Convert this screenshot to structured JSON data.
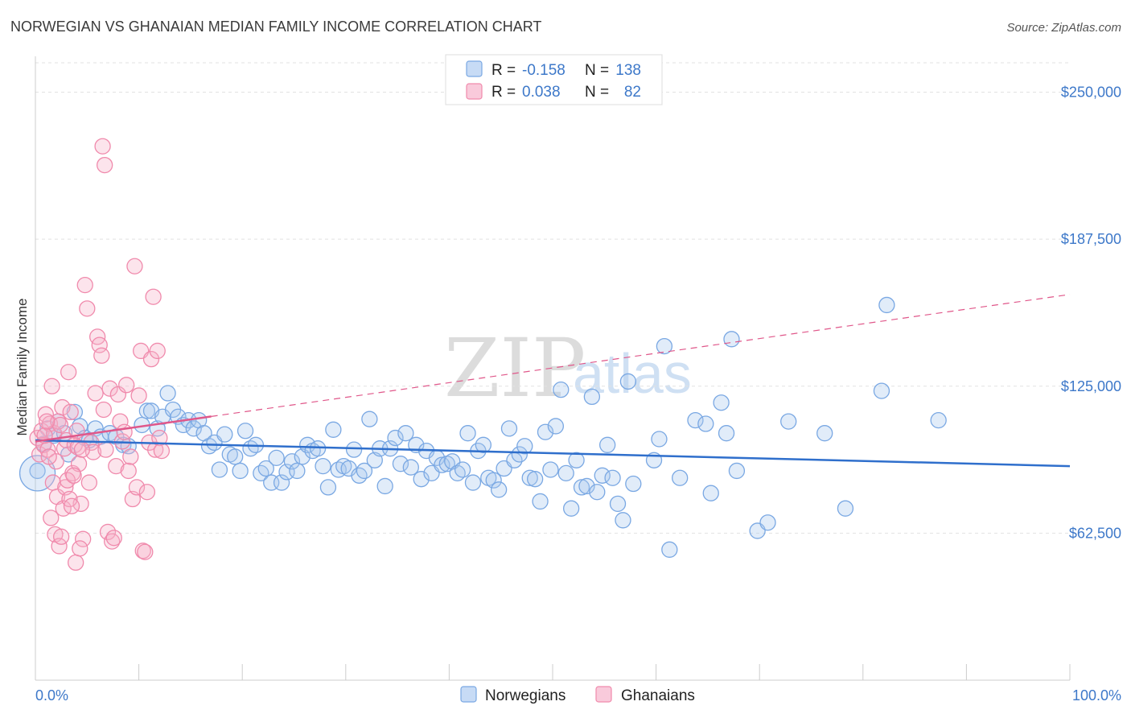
{
  "header": {
    "title": "NORWEGIAN VS GHANAIAN MEDIAN FAMILY INCOME CORRELATION CHART",
    "source": "Source: ZipAtlas.com"
  },
  "watermark": {
    "zip": "ZIP",
    "atlas": "atlas"
  },
  "legend_top": [
    {
      "r_label": "R =",
      "r_value": "-0.158",
      "n_label": "N =",
      "n_value": "138",
      "color": "#a9c8ef"
    },
    {
      "r_label": "R =",
      "r_value": "0.038",
      "n_label": "N =",
      "n_value": "82",
      "color": "#f5b3c8"
    }
  ],
  "chart_data": {
    "type": "scatter",
    "title": "NORWEGIAN VS GHANAIAN MEDIAN FAMILY INCOME CORRELATION CHART",
    "xlabel": "",
    "ylabel": "Median Family Income",
    "xlim": [
      0,
      100
    ],
    "ylim": [
      0,
      262500
    ],
    "x_tick_labels": [
      "0.0%",
      "100.0%"
    ],
    "y_ticks": [
      62500,
      125000,
      187500,
      250000
    ],
    "y_tick_labels": [
      "$62,500",
      "$125,000",
      "$187,500",
      "$250,000"
    ],
    "grid": true,
    "legend": [
      "Norwegians",
      "Ghanaians"
    ],
    "series": [
      {
        "name": "Norwegians",
        "color": "#7aa8e3",
        "line_color": "#2f6fcc",
        "trend": {
          "x": [
            0,
            100
          ],
          "y": [
            102000,
            91000
          ]
        },
        "points": [
          [
            0.2,
            89000
          ],
          [
            0.8,
            100500
          ],
          [
            1.2,
            107000
          ],
          [
            1.8,
            104000
          ],
          [
            2.2,
            110000
          ],
          [
            2.8,
            105000
          ],
          [
            3.2,
            96000
          ],
          [
            3.8,
            114000
          ],
          [
            4.3,
            108000
          ],
          [
            4.8,
            103000
          ],
          [
            5.2,
            102000
          ],
          [
            5.8,
            107000
          ],
          [
            6.3,
            103500
          ],
          [
            7.2,
            105000
          ],
          [
            7.8,
            103500
          ],
          [
            8.5,
            100000
          ],
          [
            9.0,
            99500
          ],
          [
            10.3,
            108500
          ],
          [
            10.8,
            114500
          ],
          [
            11.2,
            114500
          ],
          [
            11.8,
            107000
          ],
          [
            12.3,
            112000
          ],
          [
            12.8,
            122000
          ],
          [
            13.3,
            115000
          ],
          [
            13.8,
            112000
          ],
          [
            14.3,
            108500
          ],
          [
            14.8,
            110500
          ],
          [
            15.3,
            107000
          ],
          [
            15.8,
            110500
          ],
          [
            16.3,
            105000
          ],
          [
            16.8,
            99500
          ],
          [
            17.3,
            101000
          ],
          [
            17.8,
            89500
          ],
          [
            18.3,
            104500
          ],
          [
            18.8,
            96000
          ],
          [
            19.3,
            95000
          ],
          [
            19.8,
            89000
          ],
          [
            20.3,
            106000
          ],
          [
            20.8,
            98500
          ],
          [
            21.3,
            100000
          ],
          [
            21.8,
            88000
          ],
          [
            22.3,
            90000
          ],
          [
            22.8,
            84000
          ],
          [
            23.3,
            94500
          ],
          [
            23.8,
            84000
          ],
          [
            24.3,
            88500
          ],
          [
            24.8,
            93000
          ],
          [
            25.3,
            89000
          ],
          [
            25.8,
            95000
          ],
          [
            26.3,
            100000
          ],
          [
            26.8,
            97500
          ],
          [
            27.3,
            98500
          ],
          [
            27.8,
            91000
          ],
          [
            28.3,
            82000
          ],
          [
            28.8,
            106500
          ],
          [
            29.3,
            89500
          ],
          [
            29.8,
            91000
          ],
          [
            30.3,
            90000
          ],
          [
            30.8,
            98000
          ],
          [
            31.3,
            87000
          ],
          [
            31.8,
            89000
          ],
          [
            32.3,
            111000
          ],
          [
            32.8,
            93500
          ],
          [
            33.3,
            98500
          ],
          [
            33.8,
            82500
          ],
          [
            34.3,
            98500
          ],
          [
            34.8,
            103000
          ],
          [
            35.3,
            92000
          ],
          [
            35.8,
            105000
          ],
          [
            36.3,
            90500
          ],
          [
            36.8,
            100000
          ],
          [
            37.3,
            85500
          ],
          [
            37.8,
            97500
          ],
          [
            38.3,
            88000
          ],
          [
            38.8,
            94500
          ],
          [
            39.3,
            91500
          ],
          [
            39.8,
            92000
          ],
          [
            40.3,
            93000
          ],
          [
            40.8,
            88000
          ],
          [
            41.3,
            89500
          ],
          [
            41.8,
            105000
          ],
          [
            42.3,
            84000
          ],
          [
            42.8,
            97500
          ],
          [
            43.3,
            100000
          ],
          [
            43.8,
            86000
          ],
          [
            44.3,
            85000
          ],
          [
            44.8,
            81000
          ],
          [
            45.3,
            90000
          ],
          [
            45.8,
            107000
          ],
          [
            46.3,
            93500
          ],
          [
            46.8,
            96000
          ],
          [
            47.3,
            99500
          ],
          [
            47.8,
            86000
          ],
          [
            48.3,
            85500
          ],
          [
            48.8,
            76000
          ],
          [
            49.3,
            105500
          ],
          [
            49.8,
            89500
          ],
          [
            50.3,
            108000
          ],
          [
            50.8,
            123500
          ],
          [
            51.3,
            88000
          ],
          [
            51.8,
            73000
          ],
          [
            52.3,
            93500
          ],
          [
            52.8,
            82000
          ],
          [
            53.3,
            82500
          ],
          [
            53.8,
            120500
          ],
          [
            54.3,
            80000
          ],
          [
            54.8,
            87000
          ],
          [
            55.3,
            100000
          ],
          [
            55.8,
            86000
          ],
          [
            56.3,
            75000
          ],
          [
            56.8,
            68000
          ],
          [
            57.3,
            127000
          ],
          [
            57.8,
            83500
          ],
          [
            59.8,
            93500
          ],
          [
            60.3,
            102500
          ],
          [
            60.8,
            142000
          ],
          [
            61.3,
            55500
          ],
          [
            62.3,
            86000
          ],
          [
            63.8,
            110500
          ],
          [
            64.8,
            109000
          ],
          [
            65.3,
            79500
          ],
          [
            66.3,
            118000
          ],
          [
            66.8,
            105000
          ],
          [
            67.3,
            145000
          ],
          [
            67.8,
            89000
          ],
          [
            69.8,
            63500
          ],
          [
            70.8,
            67000
          ],
          [
            72.8,
            110000
          ],
          [
            76.3,
            105000
          ],
          [
            78.3,
            73000
          ],
          [
            81.8,
            123000
          ],
          [
            82.3,
            159500
          ],
          [
            87.3,
            110500
          ]
        ]
      },
      {
        "name": "Ghanaians",
        "color": "#f08aac",
        "line_color": "#e0578a",
        "trend": {
          "x": [
            0,
            100
          ],
          "y": [
            101500,
            164000
          ]
        },
        "points": [
          [
            0.2,
            103000
          ],
          [
            0.4,
            96000
          ],
          [
            0.6,
            106000
          ],
          [
            0.8,
            100000
          ],
          [
            1.0,
            113000
          ],
          [
            1.2,
            98000
          ],
          [
            1.4,
            109000
          ],
          [
            1.6,
            125000
          ],
          [
            1.8,
            105000
          ],
          [
            2.0,
            93000
          ],
          [
            2.2,
            110000
          ],
          [
            2.4,
            108500
          ],
          [
            2.6,
            116000
          ],
          [
            2.8,
            98500
          ],
          [
            3.0,
            102000
          ],
          [
            3.2,
            131000
          ],
          [
            3.4,
            114000
          ],
          [
            3.6,
            88000
          ],
          [
            3.8,
            100000
          ],
          [
            4.0,
            106000
          ],
          [
            4.2,
            92000
          ],
          [
            4.4,
            75000
          ],
          [
            4.6,
            60000
          ],
          [
            4.8,
            168000
          ],
          [
            5.0,
            158000
          ],
          [
            5.2,
            84000
          ],
          [
            5.4,
            101000
          ],
          [
            5.6,
            97000
          ],
          [
            5.8,
            122000
          ],
          [
            6.0,
            146000
          ],
          [
            6.2,
            142500
          ],
          [
            6.4,
            138000
          ],
          [
            6.6,
            115000
          ],
          [
            6.8,
            98000
          ],
          [
            7.0,
            63000
          ],
          [
            7.2,
            124000
          ],
          [
            7.4,
            59000
          ],
          [
            7.6,
            60500
          ],
          [
            7.8,
            91000
          ],
          [
            8.0,
            121500
          ],
          [
            8.2,
            110000
          ],
          [
            8.4,
            101500
          ],
          [
            8.6,
            105500
          ],
          [
            8.8,
            125500
          ],
          [
            9.0,
            89000
          ],
          [
            9.2,
            95000
          ],
          [
            9.4,
            77000
          ],
          [
            9.6,
            176000
          ],
          [
            9.8,
            82000
          ],
          [
            10.0,
            121000
          ],
          [
            10.2,
            140000
          ],
          [
            10.4,
            55000
          ],
          [
            10.6,
            54500
          ],
          [
            10.8,
            80000
          ],
          [
            11.0,
            101000
          ],
          [
            11.2,
            136500
          ],
          [
            11.4,
            163000
          ],
          [
            11.6,
            98000
          ],
          [
            11.8,
            140000
          ],
          [
            12.0,
            103000
          ],
          [
            12.2,
            97500
          ],
          [
            0.9,
            104000
          ],
          [
            1.1,
            110000
          ],
          [
            1.3,
            95000
          ],
          [
            1.5,
            69000
          ],
          [
            1.7,
            84000
          ],
          [
            1.9,
            62000
          ],
          [
            2.1,
            78000
          ],
          [
            2.3,
            57000
          ],
          [
            2.5,
            61000
          ],
          [
            2.7,
            73000
          ],
          [
            2.9,
            82000
          ],
          [
            3.1,
            85000
          ],
          [
            3.3,
            77000
          ],
          [
            3.5,
            74000
          ],
          [
            3.7,
            87000
          ],
          [
            3.9,
            50000
          ],
          [
            4.1,
            99000
          ],
          [
            4.3,
            56000
          ],
          [
            4.5,
            98000
          ],
          [
            6.5,
            227000
          ],
          [
            6.7,
            219000
          ]
        ]
      }
    ]
  }
}
